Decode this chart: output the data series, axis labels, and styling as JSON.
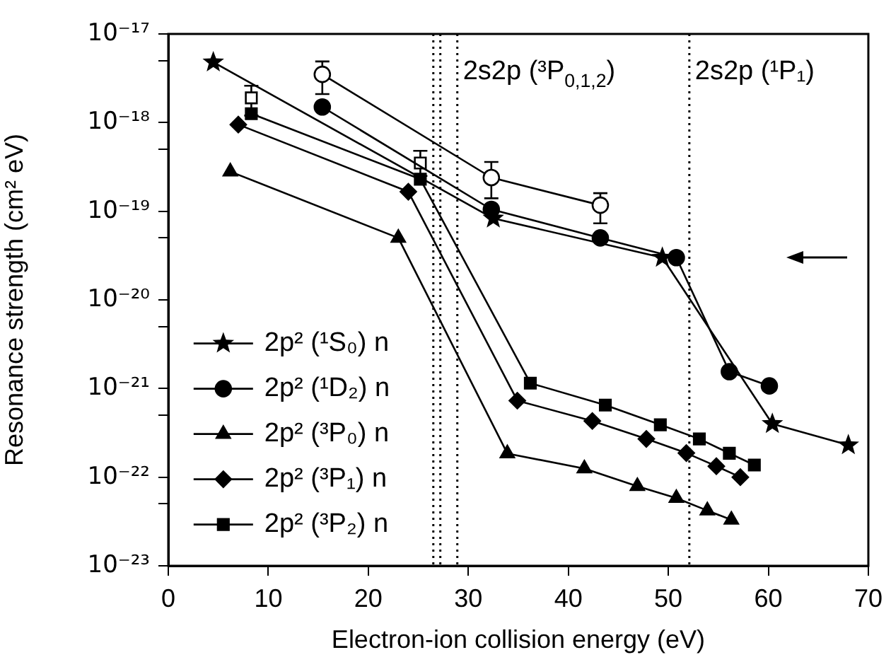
{
  "chart_data": {
    "type": "line",
    "xlabel": "Electron-ion collision energy (eV)",
    "ylabel": "Resonance strength (cm² eV)",
    "log": "y",
    "grid": false,
    "legend": "left",
    "line_style": "solid",
    "xlim": [
      0,
      70
    ],
    "xticks": [
      0,
      10,
      20,
      30,
      40,
      50,
      60,
      70
    ],
    "ylim": [
      1e-23,
      1e-17
    ],
    "yticks": [
      {
        "value": 1e-23,
        "label": "10⁻²³"
      },
      {
        "value": 5e-23,
        "label": null
      },
      {
        "value": 1e-22,
        "label": "10⁻²²"
      },
      {
        "value": 5e-22,
        "label": null
      },
      {
        "value": 1e-21,
        "label": "10⁻²¹"
      },
      {
        "value": 5e-21,
        "label": null
      },
      {
        "value": 1e-20,
        "label": "10⁻²⁰"
      },
      {
        "value": 5e-20,
        "label": null
      },
      {
        "value": 1e-19,
        "label": "10⁻¹⁹"
      },
      {
        "value": 5e-19,
        "label": null
      },
      {
        "value": 1e-18,
        "label": "10⁻¹⁸"
      },
      {
        "value": 5e-18,
        "label": null
      },
      {
        "value": 1e-17,
        "label": "10⁻¹⁷"
      }
    ],
    "ref_lines": [
      {
        "axis": "x",
        "value": 26.5,
        "line_style": "dotted"
      },
      {
        "axis": "x",
        "value": 27.2,
        "line_style": "dotted"
      },
      {
        "axis": "x",
        "value": 28.9,
        "line_style": "dotted",
        "label": "2s2p (³P$_{0,1,2}$)"
      },
      {
        "axis": "x",
        "value": 52.1,
        "line_style": "dotted",
        "label": "2s2p (¹P₁)"
      }
    ],
    "series": [
      {
        "name": "2p² (¹S₀) n",
        "color": "#000000",
        "marker": "star",
        "x": [
          4.5,
          32.5,
          49.4,
          60.4,
          68.0
        ],
        "values": [
          4.8e-18,
          8.3e-20,
          3e-20,
          4e-22,
          2.3e-22
        ]
      },
      {
        "name": "2p² (¹D₂) n",
        "color": "#000000",
        "marker": "circle",
        "x": [
          15.4,
          32.3,
          43.2,
          50.8,
          56.1,
          60.1
        ],
        "values": [
          1.5e-18,
          1.05e-19,
          5e-20,
          3e-20,
          1.55e-21,
          1.07e-21
        ]
      },
      {
        "name": "2p² (³P₀) n",
        "color": "#000000",
        "marker": "triangle",
        "x": [
          6.2,
          23.0,
          33.9,
          41.6,
          46.9,
          50.8,
          53.9,
          56.3
        ],
        "values": [
          2.8e-19,
          5e-20,
          1.85e-22,
          1.25e-22,
          7.9e-23,
          5.8e-23,
          4.2e-23,
          3.3e-23
        ]
      },
      {
        "name": "2p² (³P₁) n",
        "color": "#000000",
        "marker": "diamond",
        "x": [
          7.0,
          24.0,
          34.9,
          42.4,
          47.8,
          51.8,
          54.8,
          57.2
        ],
        "values": [
          9.5e-19,
          1.66e-19,
          7.3e-22,
          4.3e-22,
          2.7e-22,
          1.87e-22,
          1.33e-22,
          1e-22
        ]
      },
      {
        "name": "2p² (³P₂) n",
        "color": "#000000",
        "marker": "square",
        "x": [
          8.3,
          25.2,
          36.2,
          43.7,
          49.2,
          53.1,
          56.1,
          58.6
        ],
        "values": [
          1.26e-18,
          2.3e-19,
          1.15e-21,
          6.5e-22,
          3.9e-22,
          2.7e-22,
          1.86e-22,
          1.37e-22
        ]
      },
      {
        "type": "line",
        "color": "#000000",
        "marker": "circle",
        "x": [
          15.4,
          32.3,
          43.2
        ],
        "values": [
          3.5e-18,
          2.4e-19,
          1.17e-19
        ],
        "errors": [
          [
            2.1e-18,
            4.9e-18
          ],
          [
            1.4e-19,
            3.6e-19
          ],
          [
            7.3e-20,
            1.6e-19
          ]
        ]
      },
      {
        "type": "scatter",
        "color": "#000000",
        "marker": "square",
        "x": [
          8.3,
          25.2
        ],
        "values": [
          1.9e-18,
          3.5e-19
        ],
        "errors": [
          [
            1.2e-18,
            2.6e-18
          ],
          [
            2.5e-19,
            4.8e-19
          ]
        ]
      }
    ]
  }
}
